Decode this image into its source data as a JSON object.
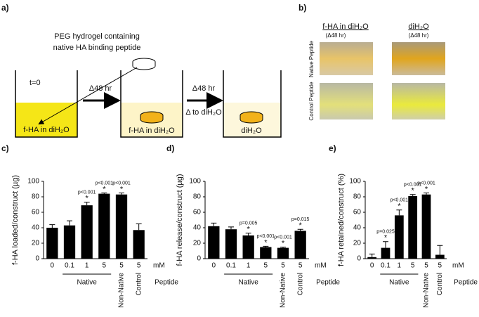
{
  "panel_a": {
    "label": "a)",
    "hydrogel_text": [
      "PEG hydrogel containing",
      "native HA binding peptide"
    ],
    "start": "t=0",
    "step1": "Δ48 hr",
    "step2": "Δ48 hr",
    "step2_note": "Δ  to diH₂O",
    "beaker1": "f-HA in diH₂O",
    "beaker2": "f-HA in diH₂O",
    "beaker3": "diH₂O"
  },
  "panel_b": {
    "label": "b)",
    "col1": "f-HA in diH₂O",
    "col1_sub": "(Δ48 hr)",
    "col2": "diH₂O",
    "col2_sub": "(Δ48 hr)",
    "row1": "Native Peptide",
    "row2": "Control Peptide"
  },
  "chart_data": [
    {
      "type": "bar",
      "panel": "c)",
      "y_label": "f-HA loaded/construct (µg)",
      "categories": [
        "0",
        "0.1",
        "1",
        "5",
        "5",
        "5"
      ],
      "values": [
        40,
        43,
        69,
        84,
        83,
        37
      ],
      "errors": [
        4,
        6,
        4,
        1,
        2,
        8
      ],
      "p_labels": [
        null,
        null,
        "p<0.001",
        "p<0.001",
        "p<0.001",
        null
      ],
      "stars": [
        null,
        null,
        "*",
        "*",
        "*",
        null
      ],
      "color": "#000000",
      "ylim": [
        0,
        100
      ],
      "yticks": [
        0,
        20,
        40,
        60,
        80,
        100
      ],
      "groups": [
        "Native",
        "Non-Native",
        "Control"
      ],
      "unit_label": "mM",
      "group_label": "Peptide"
    },
    {
      "type": "bar",
      "panel": "d)",
      "y_label": "f-HA release/construct (µg)",
      "categories": [
        "0",
        "0.1",
        "1",
        "5",
        "5",
        "5"
      ],
      "values": [
        42,
        38,
        30,
        15,
        14,
        36
      ],
      "errors": [
        4,
        3,
        3,
        1,
        1,
        2
      ],
      "p_labels": [
        null,
        null,
        "p=0.005",
        "p<0.001",
        "p<0.001",
        "p=0.015"
      ],
      "stars": [
        null,
        null,
        "*",
        "*",
        "*",
        "*"
      ],
      "color": "#000000",
      "ylim": [
        0,
        100
      ],
      "yticks": [
        0,
        20,
        40,
        60,
        80,
        100
      ],
      "groups": [
        "Native",
        "Non-Native",
        "Control"
      ],
      "unit_label": "mM",
      "group_label": "Peptide"
    },
    {
      "type": "bar",
      "panel": "e)",
      "y_label": "f-HA retained/construct (%)",
      "categories": [
        "0",
        "0.1",
        "1",
        "5",
        "5",
        "5"
      ],
      "values": [
        2,
        14,
        56,
        81,
        83,
        5
      ],
      "errors": [
        4,
        8,
        7,
        2,
        2,
        12
      ],
      "p_labels": [
        null,
        "p=0.025",
        "p<0.001",
        "p<0.001",
        "p<0.001",
        null
      ],
      "stars": [
        null,
        "*",
        "*",
        "*",
        "*",
        null
      ],
      "color": "#000000",
      "ylim": [
        0,
        100
      ],
      "yticks": [
        0,
        20,
        40,
        60,
        80,
        100
      ],
      "groups": [
        "Native",
        "Non-Native",
        "Control"
      ],
      "unit_label": "mM",
      "group_label": "Peptide"
    }
  ]
}
